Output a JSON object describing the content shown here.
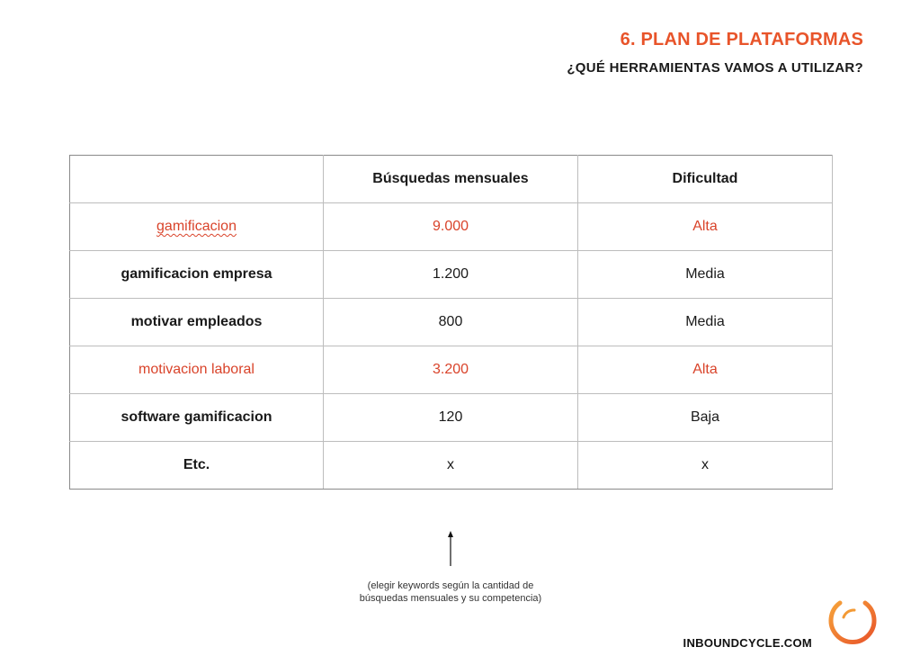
{
  "header": {
    "title": "6. PLAN DE PLATAFORMAS",
    "subtitle": "¿QUÉ HERRAMIENTAS VAMOS A UTILIZAR?"
  },
  "table": {
    "columns": [
      "",
      "Búsquedas mensuales",
      "Dificultad"
    ],
    "rows": [
      {
        "keyword": "gamificacion",
        "searches": "9.000",
        "difficulty": "Alta",
        "highlight": true
      },
      {
        "keyword": "gamificacion empresa",
        "searches": "1.200",
        "difficulty": "Media",
        "highlight": false
      },
      {
        "keyword": "motivar empleados",
        "searches": "800",
        "difficulty": "Media",
        "highlight": false
      },
      {
        "keyword": "motivacion laboral",
        "searches": "3.200",
        "difficulty": "Alta",
        "highlight": true
      },
      {
        "keyword": "software gamificacion",
        "searches": "120",
        "difficulty": "Baja",
        "highlight": false
      },
      {
        "keyword": "Etc.",
        "searches": "x",
        "difficulty": "x",
        "highlight": false
      }
    ]
  },
  "note": {
    "line1": "(elegir keywords según la cantidad de",
    "line2": "búsquedas mensuales y su competencia)"
  },
  "footer": {
    "brand": "INBOUNDCYCLE.COM"
  },
  "colors": {
    "accent": "#e8542a",
    "highlight_text": "#d9432a"
  },
  "icons": {
    "arrow": "arrow-up-icon",
    "logo": "inboundcycle-ring-logo"
  }
}
